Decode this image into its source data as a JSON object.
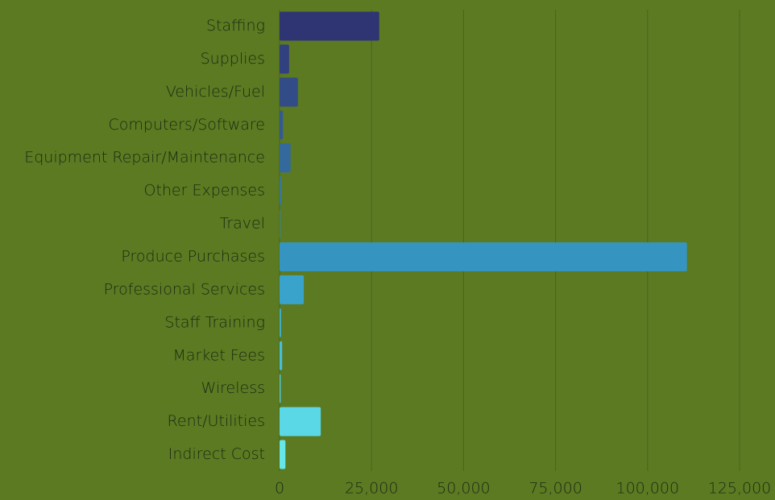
{
  "chart_data": {
    "type": "hbar",
    "categories": [
      "Staffing",
      "Supplies",
      "Vehicles/Fuel",
      "Computers/Software",
      "Equipment Repair/Maintenance",
      "Other Expenses",
      "Travel",
      "Produce Purchases",
      "Professional Services",
      "Staff Training",
      "Market Fees",
      "Wireless",
      "Rent/Utilities",
      "Indirect Cost"
    ],
    "values": [
      27100,
      2600,
      5000,
      900,
      3000,
      400,
      200,
      110700,
      6600,
      400,
      700,
      300,
      11200,
      1600
    ],
    "colors": [
      "#2f3573",
      "#31407e",
      "#324c88",
      "#335a92",
      "#34699e",
      "#3577a8",
      "#3583b0",
      "#3595c0",
      "#3aa3cb",
      "#40b2d4",
      "#47bfdc",
      "#4fcce2",
      "#5bd8e6",
      "#66e6e8"
    ],
    "xlim": [
      0,
      125000
    ],
    "xticks": [
      0,
      {
        "value": 25000,
        "label": "25,000"
      },
      {
        "value": 50000,
        "label": "50,000"
      },
      {
        "value": 75000,
        "label": "75,000"
      },
      {
        "value": 100000,
        "label": "100,000"
      },
      {
        "value": 125000,
        "label": "125,000"
      }
    ],
    "grid": true
  }
}
